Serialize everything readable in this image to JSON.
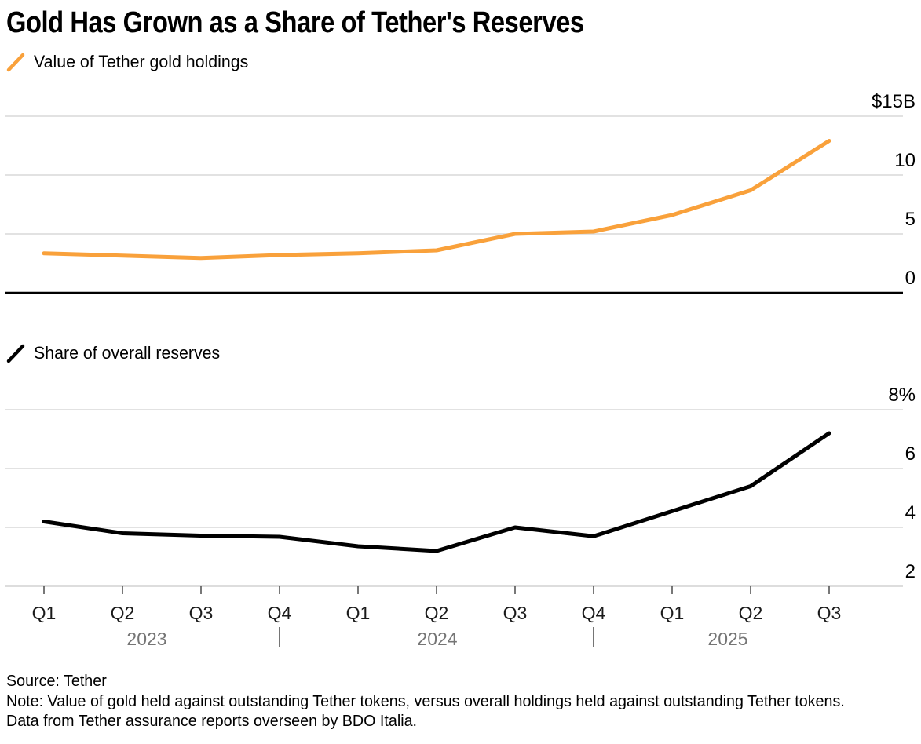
{
  "title": "Gold Has Grown as a Share of Tether's Reserves",
  "legends": [
    {
      "label": "Value of Tether gold holdings",
      "icon": "gold-slash-icon",
      "color": "#F9A13B"
    },
    {
      "label": "Share of overall reserves",
      "icon": "share-slash-icon",
      "color": "#000000"
    }
  ],
  "colors": {
    "gold_line": "#F9A13B",
    "share_line": "#000000",
    "gridline": "#D9D9D9",
    "top_baseline": "#000000",
    "bottom_baseline": "#D2D2D2",
    "axis_tick": "#4a4a4a",
    "quarter_label": "#1a1a1a",
    "year_label": "#757575"
  },
  "x_axis": {
    "quarters": [
      "Q1",
      "Q2",
      "Q3",
      "Q4",
      "Q1",
      "Q2",
      "Q3",
      "Q4",
      "Q1",
      "Q2",
      "Q3"
    ],
    "years": [
      "2023",
      "2024",
      "2025"
    ],
    "year_separator": "|"
  },
  "chart_data": [
    {
      "type": "line",
      "name": "Value of Tether gold holdings",
      "unit": "$B",
      "x": [
        "Q1 2023",
        "Q2 2023",
        "Q3 2023",
        "Q4 2023",
        "Q1 2024",
        "Q2 2024",
        "Q3 2024",
        "Q4 2024",
        "Q1 2025",
        "Q2 2025",
        "Q3 2025"
      ],
      "values": [
        3.35,
        3.15,
        2.95,
        3.2,
        3.35,
        3.6,
        5.0,
        5.2,
        6.6,
        8.7,
        12.9
      ],
      "ylim": [
        0,
        15
      ],
      "y_gridline_values": [
        15,
        10,
        5
      ],
      "y_tick_labels": [
        "$15B",
        "10",
        "5",
        "0"
      ],
      "y_tick_values": [
        15,
        10,
        5,
        0
      ],
      "grid": true,
      "legend_position": "top-left"
    },
    {
      "type": "line",
      "name": "Share of overall reserves",
      "unit": "%",
      "x": [
        "Q1 2023",
        "Q2 2023",
        "Q3 2023",
        "Q4 2023",
        "Q1 2024",
        "Q2 2024",
        "Q3 2024",
        "Q4 2024",
        "Q1 2025",
        "Q2 2025",
        "Q3 2025"
      ],
      "values": [
        4.2,
        3.8,
        3.72,
        3.68,
        3.36,
        3.2,
        4.0,
        3.7,
        4.55,
        5.4,
        7.2
      ],
      "ylim": [
        2,
        8
      ],
      "y_gridline_values": [
        8,
        6,
        4
      ],
      "y_tick_labels": [
        "8%",
        "6",
        "4",
        "2"
      ],
      "y_tick_values": [
        8,
        6,
        4,
        2
      ],
      "grid": true,
      "legend_position": "top-left"
    }
  ],
  "footer": {
    "source": "Source: Tether",
    "note": "Note: Value of gold held against outstanding Tether tokens, versus overall holdings held against outstanding Tether tokens. Data from Tether assurance reports overseen by BDO Italia."
  }
}
